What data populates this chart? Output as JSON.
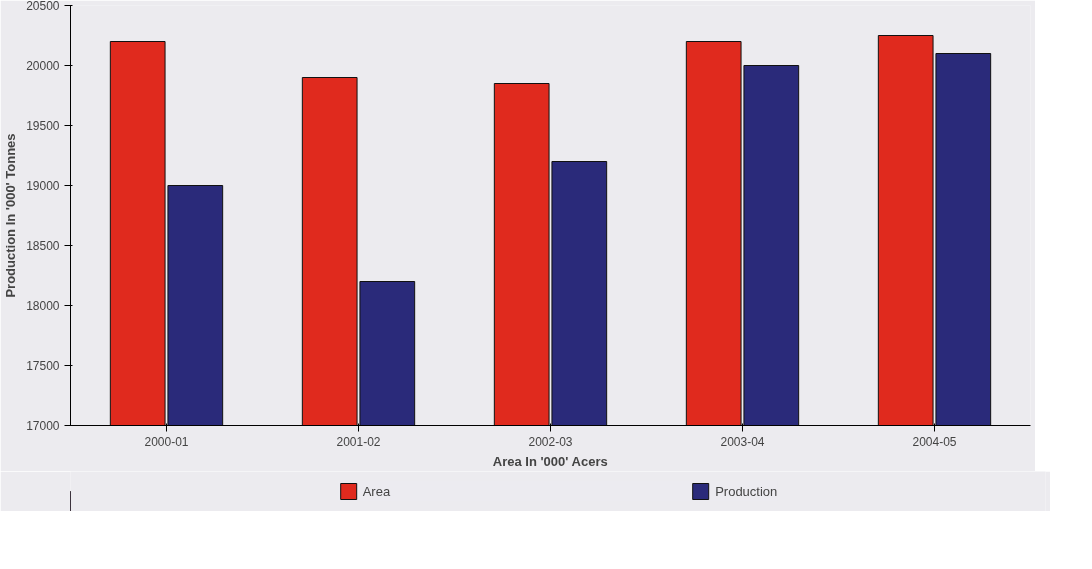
{
  "chart_data": {
    "type": "bar",
    "xlabel": "Area In '000' Acers",
    "ylabel": "Production In '000' Tonnes",
    "categories": [
      "2000-01",
      "2001-02",
      "2002-03",
      "2003-04",
      "2004-05"
    ],
    "series": [
      {
        "name": "Area",
        "color": "#e02a1e",
        "values": [
          20200,
          19900,
          19850,
          20200,
          20250
        ]
      },
      {
        "name": "Production",
        "color": "#2a2a7a",
        "values": [
          19000,
          18200,
          19200,
          20000,
          20100
        ]
      }
    ],
    "ylim": [
      17000,
      20500
    ],
    "yticks": [
      17000,
      17500,
      18000,
      18500,
      19000,
      19500,
      20000,
      20500
    ],
    "grid": false,
    "legend": "bottom"
  }
}
